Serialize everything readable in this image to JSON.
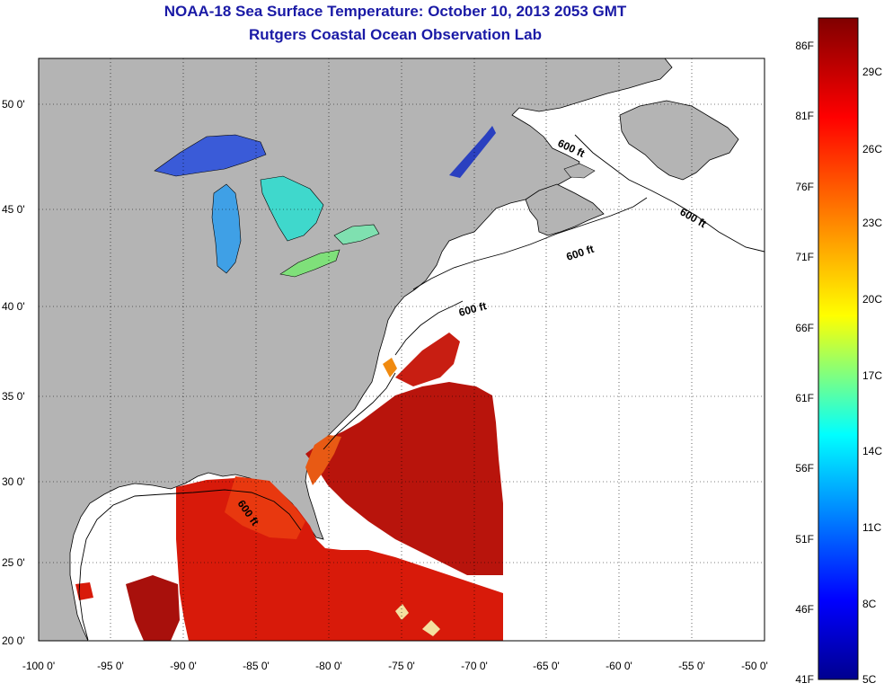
{
  "header": {
    "title": "NOAA-18 Sea Surface Temperature:  October 10, 2013 2053 GMT",
    "subtitle": "Rutgers Coastal Ocean Observation Lab"
  },
  "map": {
    "lat_labels": [
      "50 0'",
      "45 0'",
      "40 0'",
      "35 0'",
      "30 0'",
      "25 0'",
      "20 0'"
    ],
    "lon_labels": [
      "-100 0'",
      "-95 0'",
      "-90 0'",
      "-85 0'",
      "-80 0'",
      "-75 0'",
      "-70 0'",
      "-65 0'",
      "-60 0'",
      "-55 0'",
      "-50 0'"
    ],
    "isobath_label": "600 ft",
    "colors": {
      "land": "#b4b4b4",
      "ocean": "#ffffff",
      "title": "#1a1aa6"
    }
  },
  "colorbar": {
    "fahrenheit_labels": [
      "86F",
      "81F",
      "76F",
      "71F",
      "66F",
      "61F",
      "56F",
      "51F",
      "46F",
      "41F"
    ],
    "celsius_labels": [
      "29C",
      "26C",
      "23C",
      "20C",
      "17C",
      "14C",
      "11C",
      "8C",
      "5C"
    ],
    "colors": [
      "#00008f",
      "#0000ff",
      "#00ffff",
      "#ffff00",
      "#ff7f00",
      "#ff0000",
      "#800000"
    ]
  }
}
